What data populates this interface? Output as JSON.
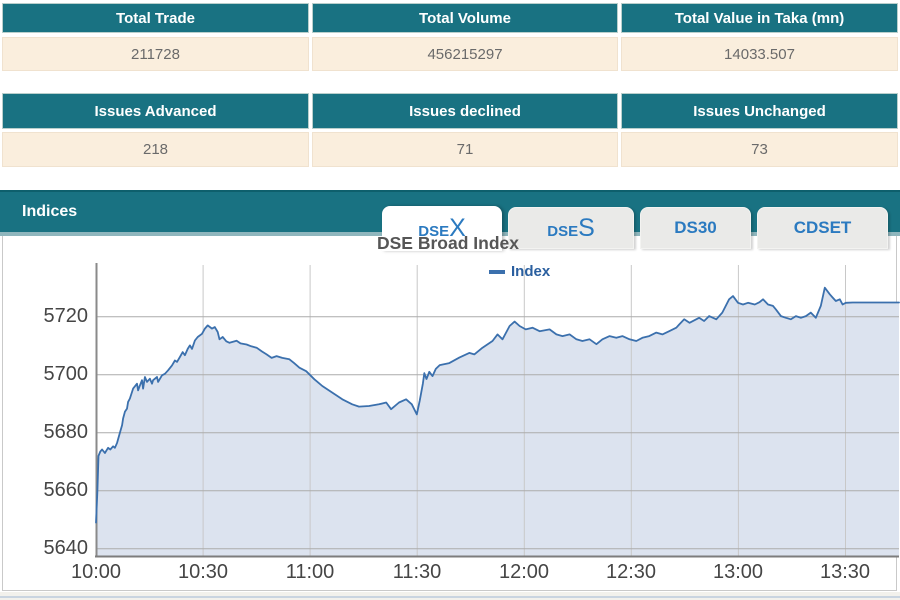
{
  "summary_tables": [
    {
      "name": "trade-summary",
      "headers": [
        "Total Trade",
        "Total Volume",
        "Total Value in Taka (mn)"
      ],
      "values": [
        "211728",
        "456215297",
        "14033.507"
      ]
    },
    {
      "name": "issues-summary",
      "headers": [
        "Issues Advanced",
        "Issues declined",
        "Issues Unchanged"
      ],
      "values": [
        "218",
        "71",
        "73"
      ]
    }
  ],
  "indices": {
    "title": "Indices",
    "tabs": [
      {
        "text": "DSEX",
        "small": "DSE",
        "big": "X",
        "active": true
      },
      {
        "text": "DSES",
        "small": "DSE",
        "big": "S",
        "active": false
      },
      {
        "text": "DS30",
        "active": false
      },
      {
        "text": "CDSET",
        "active": false
      }
    ]
  },
  "chart_data": {
    "type": "area",
    "title": "DSE Broad Index",
    "legend": "Index",
    "series_name": "Index",
    "grid": true,
    "legend_position": "top-center",
    "colors": {
      "line": "#3b70ad",
      "fill": "#dce3ef",
      "accent_teal": "#197282",
      "grid_h": "#acacac",
      "grid_v": "#c8c8c8",
      "axis": "#808080"
    },
    "x_axis": {
      "unit": "time of day",
      "start": "10:00",
      "end": "13:44",
      "tick_labels": [
        "10:00",
        "10:30",
        "11:00",
        "11:30",
        "12:00",
        "12:30",
        "13:00",
        "13:30"
      ],
      "tick_minutes": [
        0,
        30,
        60,
        90,
        120,
        150,
        180,
        210
      ]
    },
    "y_axis": {
      "tick_labels": [
        "5640",
        "5660",
        "5680",
        "5700",
        "5720"
      ],
      "tick_values": [
        5640,
        5660,
        5680,
        5700,
        5720
      ],
      "ylim": [
        5637,
        5738
      ]
    },
    "points_format": "[minutes_after_10:00, index_value]",
    "points": [
      [
        0,
        5649
      ],
      [
        0.4,
        5660
      ],
      [
        0.7,
        5672
      ],
      [
        1.2,
        5673.5
      ],
      [
        1.7,
        5674.2
      ],
      [
        2.5,
        5673
      ],
      [
        3.4,
        5674.8
      ],
      [
        4,
        5674.2
      ],
      [
        4.8,
        5675.3
      ],
      [
        5.3,
        5674.8
      ],
      [
        5.9,
        5676.5
      ],
      [
        6.7,
        5680
      ],
      [
        7.3,
        5682.6
      ],
      [
        7.6,
        5684.9
      ],
      [
        8.1,
        5687.2
      ],
      [
        8.7,
        5688.3
      ],
      [
        9,
        5690.6
      ],
      [
        9.5,
        5691.8
      ],
      [
        10.4,
        5695.2
      ],
      [
        11.5,
        5696.9
      ],
      [
        11.8,
        5694.6
      ],
      [
        12.3,
        5696.3
      ],
      [
        12.9,
        5698.1
      ],
      [
        13.2,
        5695.2
      ],
      [
        13.7,
        5699.2
      ],
      [
        14.3,
        5697.5
      ],
      [
        15.1,
        5698.6
      ],
      [
        15.7,
        5696.9
      ],
      [
        16,
        5698.1
      ],
      [
        17.1,
        5699.2
      ],
      [
        17.4,
        5697.5
      ],
      [
        18.5,
        5699.8
      ],
      [
        19.3,
        5700.3
      ],
      [
        20.2,
        5701.5
      ],
      [
        21.3,
        5703.2
      ],
      [
        22.1,
        5704.9
      ],
      [
        22.7,
        5704.4
      ],
      [
        23.5,
        5706.1
      ],
      [
        24.3,
        5707.8
      ],
      [
        24.9,
        5706.7
      ],
      [
        25.7,
        5708.9
      ],
      [
        26.3,
        5710.1
      ],
      [
        26.9,
        5708.9
      ],
      [
        27.7,
        5711.8
      ],
      [
        28.5,
        5713
      ],
      [
        29.7,
        5714.1
      ],
      [
        30.5,
        5715.9
      ],
      [
        31.3,
        5717
      ],
      [
        32.5,
        5715.9
      ],
      [
        33.3,
        5716.4
      ],
      [
        34.1,
        5714.7
      ],
      [
        34.6,
        5712.2
      ],
      [
        35.5,
        5713
      ],
      [
        36.5,
        5711.5
      ],
      [
        37.4,
        5711
      ],
      [
        39.4,
        5711.7
      ],
      [
        40.5,
        5710.8
      ],
      [
        42.2,
        5710.4
      ],
      [
        43.5,
        5709.8
      ],
      [
        45,
        5709.3
      ],
      [
        46.5,
        5708
      ],
      [
        47.8,
        5707
      ],
      [
        49.2,
        5705.8
      ],
      [
        50.6,
        5706.4
      ],
      [
        52.2,
        5705.8
      ],
      [
        54.2,
        5705.3
      ],
      [
        55.5,
        5704
      ],
      [
        57,
        5702.4
      ],
      [
        58.9,
        5701.2
      ],
      [
        61.2,
        5698.4
      ],
      [
        63.4,
        5696.1
      ],
      [
        66.2,
        5693.8
      ],
      [
        69,
        5691.5
      ],
      [
        71.8,
        5689.8
      ],
      [
        73.7,
        5689
      ],
      [
        76.5,
        5689.2
      ],
      [
        79.3,
        5689.8
      ],
      [
        81.3,
        5690.4
      ],
      [
        82.7,
        5688.1
      ],
      [
        84.9,
        5690.4
      ],
      [
        86.9,
        5691.5
      ],
      [
        88.5,
        5689.8
      ],
      [
        89.9,
        5686.3
      ],
      [
        90.7,
        5691
      ],
      [
        91.6,
        5697
      ],
      [
        92,
        5700.5
      ],
      [
        92.6,
        5698.5
      ],
      [
        93.4,
        5701
      ],
      [
        94.3,
        5699.5
      ],
      [
        95.2,
        5702
      ],
      [
        96.3,
        5703.3
      ],
      [
        99,
        5704
      ],
      [
        101.8,
        5705.9
      ],
      [
        104.6,
        5707.5
      ],
      [
        106,
        5707
      ],
      [
        108.3,
        5709.3
      ],
      [
        111.1,
        5711.6
      ],
      [
        112.5,
        5713.9
      ],
      [
        113.9,
        5712.2
      ],
      [
        115.9,
        5716.8
      ],
      [
        117.3,
        5718.3
      ],
      [
        118.7,
        5716.8
      ],
      [
        120.4,
        5715.6
      ],
      [
        122.3,
        5716.2
      ],
      [
        124.3,
        5715
      ],
      [
        127.1,
        5715.6
      ],
      [
        129,
        5713.9
      ],
      [
        130.7,
        5713.3
      ],
      [
        132.7,
        5713.9
      ],
      [
        134.6,
        5712.2
      ],
      [
        136.3,
        5711.6
      ],
      [
        138.3,
        5712.2
      ],
      [
        140.2,
        5710.5
      ],
      [
        141.9,
        5712.2
      ],
      [
        143.9,
        5713.3
      ],
      [
        145.8,
        5712.7
      ],
      [
        147.5,
        5713.3
      ],
      [
        149.5,
        5712.2
      ],
      [
        151.4,
        5711.6
      ],
      [
        153.1,
        5712.7
      ],
      [
        155,
        5713.3
      ],
      [
        157,
        5714.5
      ],
      [
        158.7,
        5713.9
      ],
      [
        160.6,
        5715
      ],
      [
        162.6,
        5716.2
      ],
      [
        163.4,
        5717.3
      ],
      [
        164.8,
        5719.1
      ],
      [
        166.3,
        5717.9
      ],
      [
        169,
        5719.6
      ],
      [
        170.4,
        5718.5
      ],
      [
        171.8,
        5720.2
      ],
      [
        173.8,
        5719.1
      ],
      [
        175.5,
        5721.4
      ],
      [
        177.4,
        5726
      ],
      [
        178.5,
        5727.1
      ],
      [
        179.9,
        5724.8
      ],
      [
        181.3,
        5724.2
      ],
      [
        182.7,
        5724.8
      ],
      [
        184.6,
        5724.2
      ],
      [
        185.9,
        5725
      ],
      [
        186.9,
        5726
      ],
      [
        188.3,
        5724.2
      ],
      [
        189.7,
        5723.7
      ],
      [
        190.5,
        5722.5
      ],
      [
        191.9,
        5720.2
      ],
      [
        193.3,
        5719.6
      ],
      [
        194.7,
        5719.1
      ],
      [
        196.1,
        5720.2
      ],
      [
        197.5,
        5719.6
      ],
      [
        198.9,
        5720.2
      ],
      [
        200.3,
        5721.4
      ],
      [
        201.7,
        5719.6
      ],
      [
        203.1,
        5723.7
      ],
      [
        204.2,
        5730
      ],
      [
        205.6,
        5727.7
      ],
      [
        206.4,
        5726.6
      ],
      [
        207.3,
        5725.4
      ],
      [
        208.4,
        5726
      ],
      [
        209.2,
        5724.2
      ],
      [
        210.1,
        5724.8
      ],
      [
        212,
        5724.9
      ],
      [
        225,
        5724.9
      ]
    ]
  }
}
